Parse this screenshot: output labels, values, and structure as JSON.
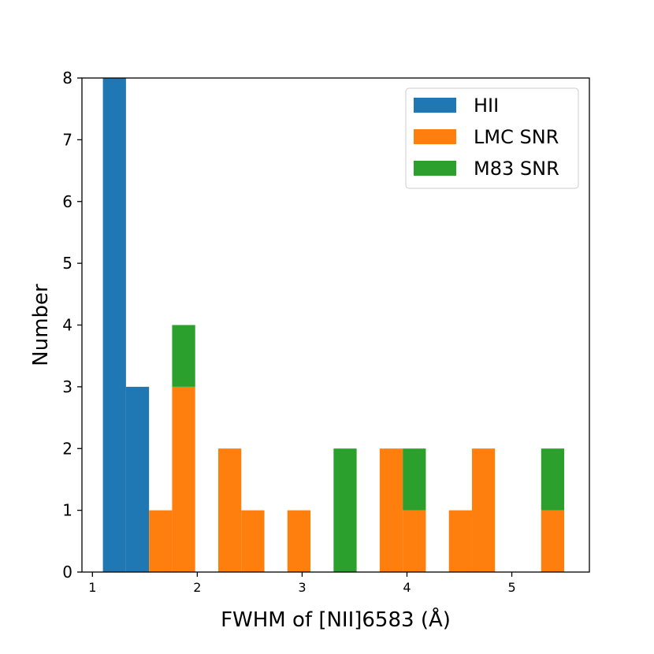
{
  "chart_data": {
    "type": "bar",
    "stacked": true,
    "xlabel": "FWHM of [NII]6583 (Å)",
    "ylabel": "Number",
    "xlim": [
      0.9,
      5.74
    ],
    "ylim": [
      0,
      8
    ],
    "xticks": [
      1,
      2,
      3,
      4,
      5
    ],
    "yticks": [
      0,
      1,
      2,
      3,
      4,
      5,
      6,
      7,
      8
    ],
    "grid": false,
    "legend_position": "top-right",
    "bin_edges": [
      1.1,
      1.32,
      1.54,
      1.76,
      1.98,
      2.2,
      2.42,
      2.64,
      2.86,
      3.08,
      3.3,
      3.52,
      3.74,
      3.96,
      4.18,
      4.4,
      4.62,
      4.84,
      5.06,
      5.28,
      5.5
    ],
    "series": [
      {
        "name": "HII",
        "color": "#1f77b4",
        "values": [
          8,
          3,
          0,
          0,
          0,
          0,
          0,
          0,
          0,
          0,
          0,
          0,
          0,
          0,
          0,
          0,
          0,
          0,
          0,
          0
        ]
      },
      {
        "name": "LMC SNR",
        "color": "#ff7f0e",
        "values": [
          0,
          0,
          1,
          3,
          0,
          2,
          1,
          0,
          1,
          0,
          0,
          0,
          2,
          1,
          0,
          1,
          2,
          0,
          0,
          1
        ]
      },
      {
        "name": "M83 SNR",
        "color": "#2ca02c",
        "values": [
          0,
          0,
          0,
          1,
          0,
          0,
          0,
          0,
          0,
          0,
          2,
          0,
          0,
          1,
          0,
          0,
          0,
          0,
          0,
          1
        ]
      }
    ]
  }
}
